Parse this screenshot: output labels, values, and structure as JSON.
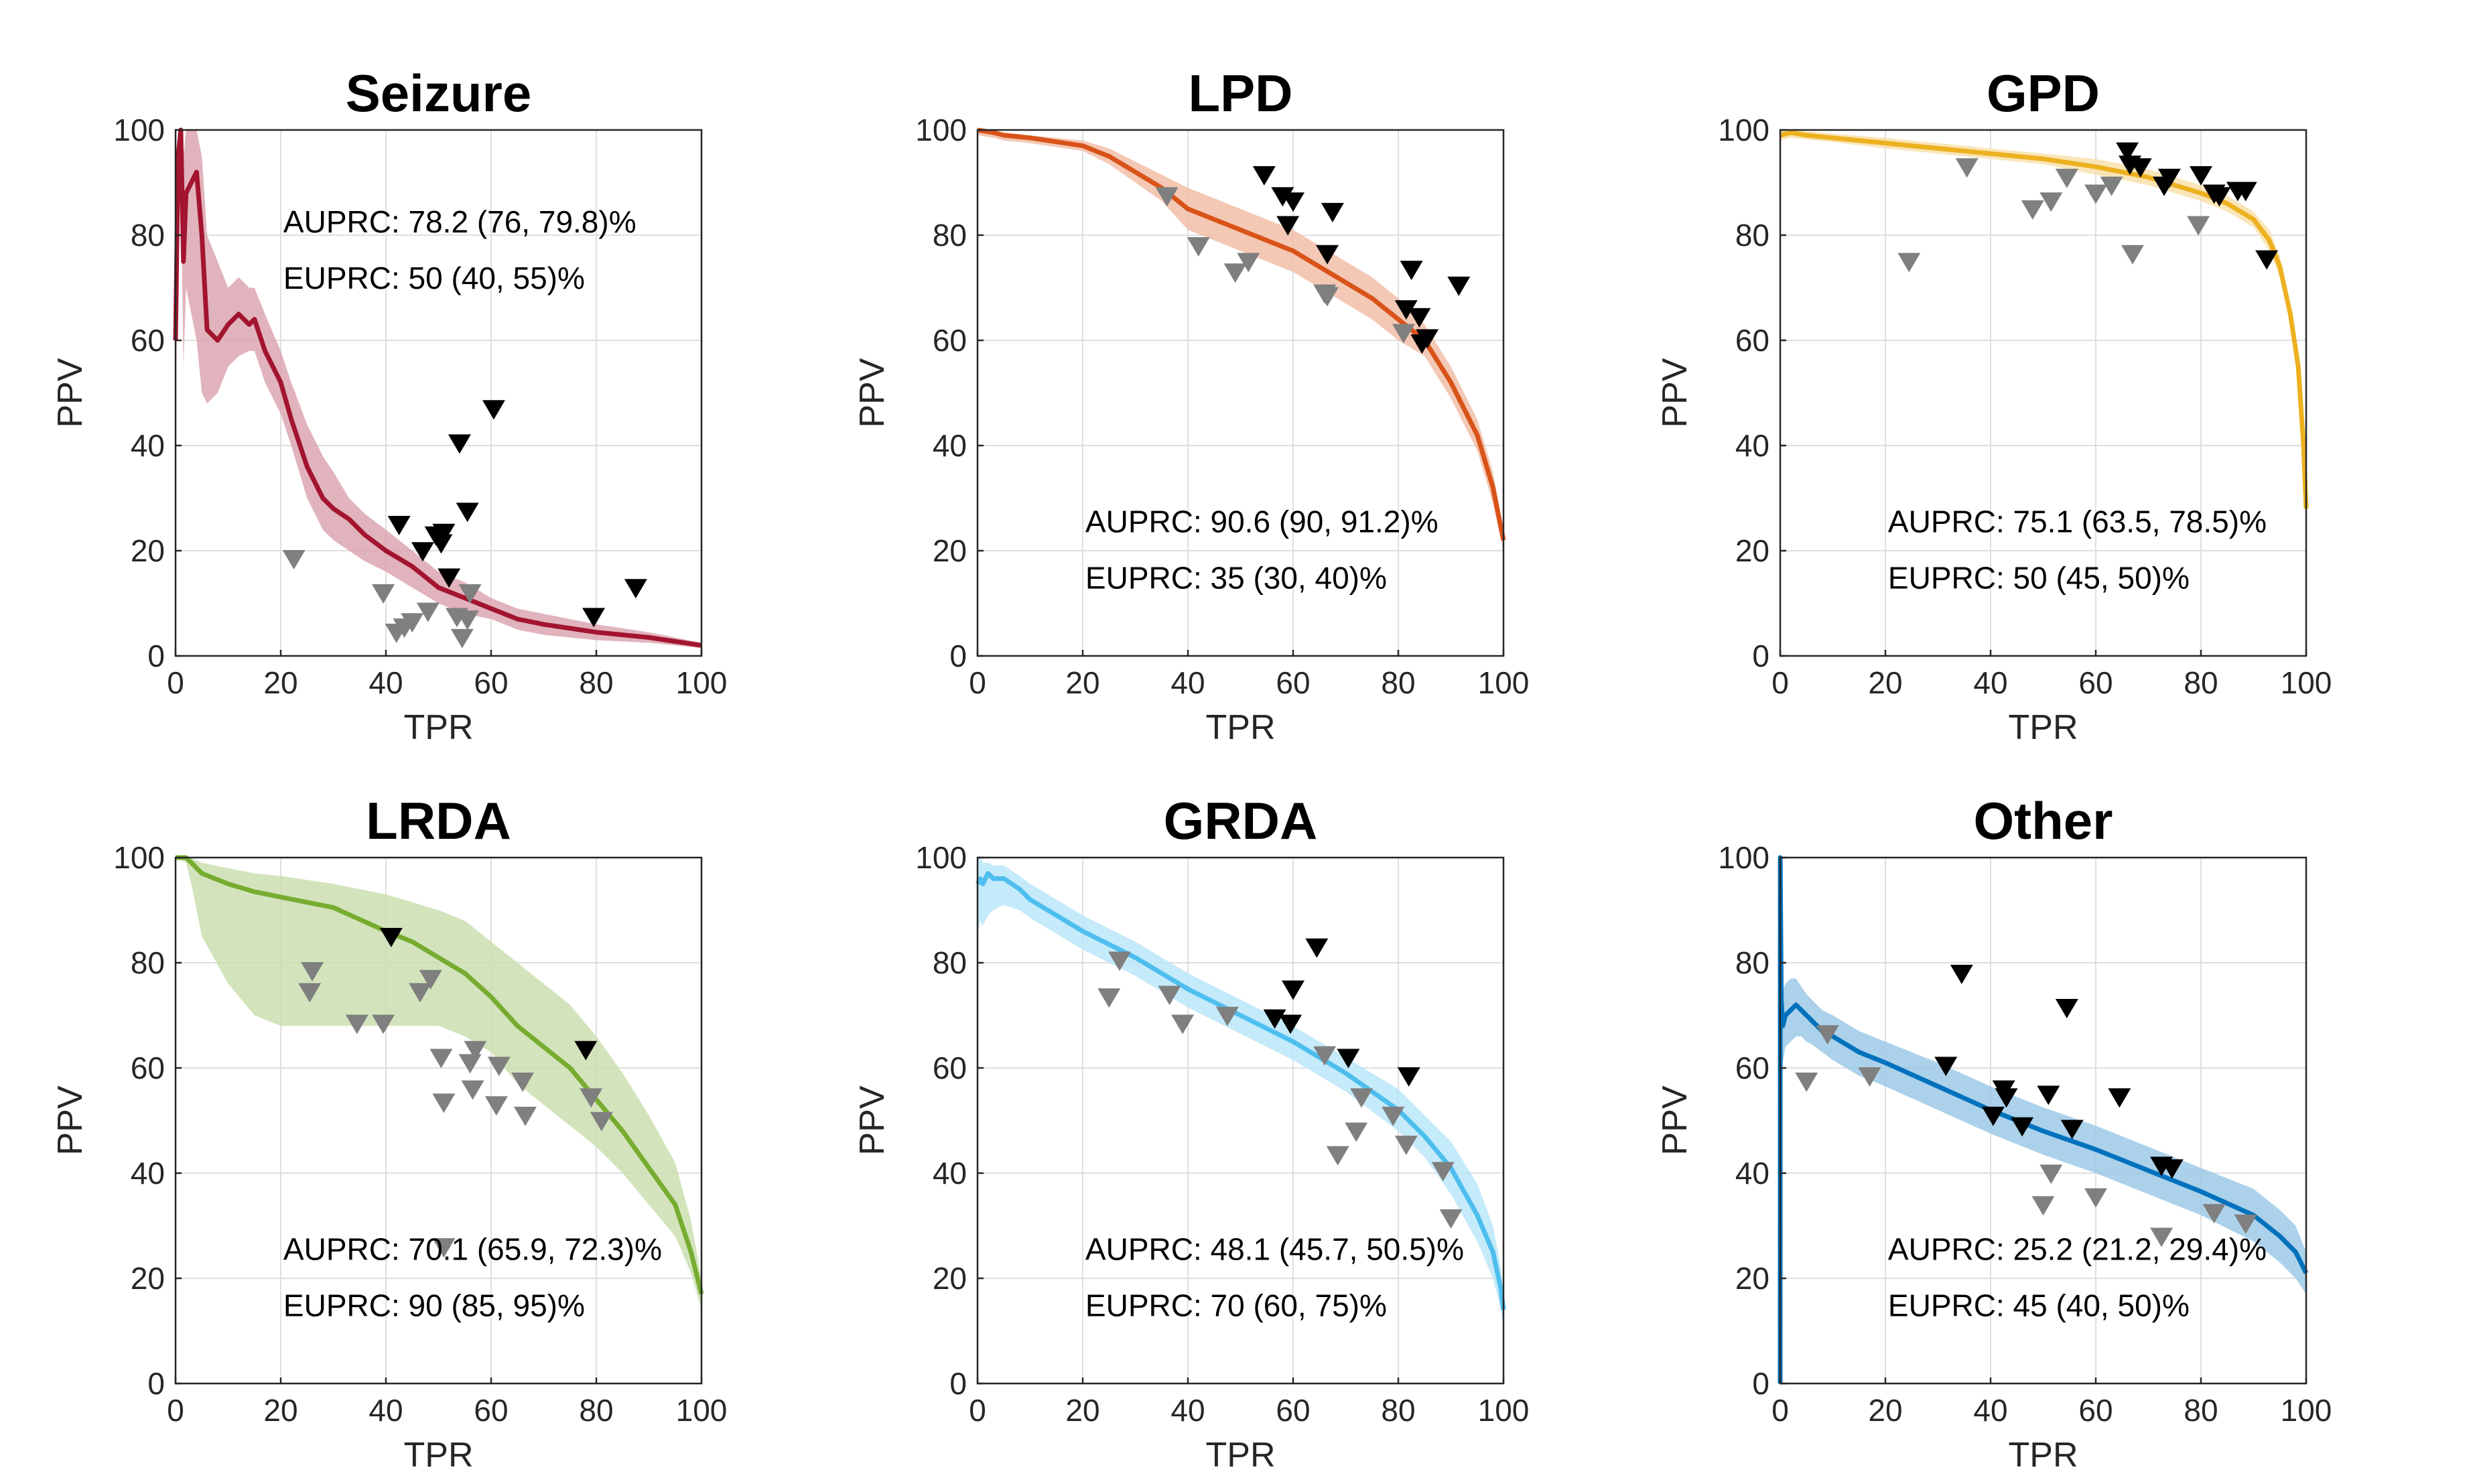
{
  "chart_data": [
    {
      "type": "line",
      "title": "Seizure",
      "xlabel": "TPR",
      "ylabel": "PPV",
      "xlim": [
        0,
        100
      ],
      "ylim": [
        0,
        100
      ],
      "xticks": [
        0,
        20,
        40,
        60,
        80,
        100
      ],
      "yticks": [
        0,
        20,
        40,
        60,
        80,
        100
      ],
      "grid": true,
      "color": "#A2142F",
      "annotations": [
        "AUPRC: 78.2 (76, 79.8)%",
        "EUPRC: 50 (40, 55)%"
      ],
      "annotation_position": "top",
      "curve": {
        "x": [
          0,
          0.5,
          1,
          1.5,
          2,
          3,
          4,
          5,
          6,
          8,
          10,
          12,
          14,
          15,
          17,
          20,
          22,
          25,
          28,
          30,
          33,
          36,
          40,
          45,
          50,
          55,
          60,
          65,
          70,
          80,
          90,
          100
        ],
        "y": [
          60,
          95,
          100,
          75,
          88,
          90,
          92,
          80,
          62,
          60,
          63,
          65,
          63,
          64,
          58,
          52,
          45,
          36,
          30,
          28,
          26,
          23,
          20,
          17,
          13,
          11,
          9,
          7,
          6,
          4.5,
          3.5,
          2
        ]
      },
      "band_upper": [
        75,
        100,
        100,
        95,
        100,
        100,
        100,
        95,
        80,
        75,
        70,
        72,
        70,
        70,
        65,
        58,
        52,
        44,
        38,
        35,
        30,
        27,
        24,
        20,
        16,
        14,
        11,
        9,
        8,
        6,
        4.5,
        2.5
      ],
      "band_lower": [
        45,
        80,
        90,
        55,
        70,
        65,
        60,
        50,
        48,
        50,
        55,
        57,
        58,
        58,
        52,
        46,
        40,
        30,
        24,
        22,
        20,
        18,
        16,
        13,
        10,
        8,
        7,
        5,
        4,
        3,
        2.5,
        1.5
      ],
      "markers_black": [
        [
          42.5,
          25
        ],
        [
          47,
          20
        ],
        [
          49.5,
          23
        ],
        [
          50.5,
          21.5
        ],
        [
          51,
          23.5
        ],
        [
          52,
          15
        ],
        [
          54,
          40.5
        ],
        [
          55.5,
          27.5
        ],
        [
          60.5,
          47
        ],
        [
          79.5,
          7.5
        ],
        [
          87.5,
          13
        ]
      ],
      "markers_gray": [
        [
          22.5,
          18.5
        ],
        [
          39.5,
          12
        ],
        [
          42,
          4.5
        ],
        [
          43.5,
          5.5
        ],
        [
          45,
          6.5
        ],
        [
          48,
          8.5
        ],
        [
          53.5,
          7.5
        ],
        [
          54.5,
          3.5
        ],
        [
          55.5,
          7
        ],
        [
          56,
          12
        ]
      ]
    },
    {
      "type": "line",
      "title": "LPD",
      "xlabel": "TPR",
      "ylabel": "PPV",
      "xlim": [
        0,
        100
      ],
      "ylim": [
        0,
        100
      ],
      "xticks": [
        0,
        20,
        40,
        60,
        80,
        100
      ],
      "yticks": [
        0,
        20,
        40,
        60,
        80,
        100
      ],
      "grid": true,
      "color": "#D95319",
      "annotations": [
        "AUPRC: 90.6 (90, 91.2)%",
        "EUPRC: 35 (30, 40)%"
      ],
      "annotation_position": "bottom",
      "curve": {
        "x": [
          0,
          3,
          5,
          10,
          20,
          25,
          30,
          35,
          40,
          45,
          50,
          55,
          60,
          65,
          70,
          75,
          80,
          85,
          90,
          95,
          98,
          100
        ],
        "y": [
          100,
          99.5,
          99,
          98.5,
          97,
          95,
          92,
          89,
          85,
          83,
          81,
          79,
          77,
          74,
          71,
          68,
          64,
          60,
          52,
          42,
          32,
          22
        ]
      },
      "band_upper": [
        100,
        100,
        99.5,
        99,
        98,
        96.5,
        94,
        91.5,
        89,
        87,
        85,
        83,
        81,
        78,
        75,
        72,
        68,
        63,
        55,
        45,
        35,
        24
      ],
      "band_lower": [
        99,
        98.5,
        98,
        97.5,
        96,
        93.5,
        90,
        86.5,
        81,
        79,
        77,
        75,
        73,
        70,
        67,
        64,
        60,
        57,
        49,
        39,
        29,
        20
      ],
      "markers_black": [
        [
          54.5,
          91.5
        ],
        [
          58,
          87.5
        ],
        [
          60,
          86.5
        ],
        [
          59,
          82
        ],
        [
          67.5,
          84.5
        ],
        [
          66.5,
          76.5
        ],
        [
          81.5,
          66
        ],
        [
          82.5,
          73.5
        ],
        [
          84,
          64.5
        ],
        [
          85.5,
          60.5
        ],
        [
          84.5,
          59.5
        ],
        [
          91.5,
          70.5
        ]
      ],
      "markers_gray": [
        [
          36,
          87.5
        ],
        [
          42,
          78
        ],
        [
          49,
          73
        ],
        [
          51.5,
          75
        ],
        [
          66,
          69
        ],
        [
          66.5,
          68.5
        ],
        [
          81,
          61.5
        ]
      ]
    },
    {
      "type": "line",
      "title": "GPD",
      "xlabel": "TPR",
      "ylabel": "PPV",
      "xlim": [
        0,
        100
      ],
      "ylim": [
        0,
        100
      ],
      "xticks": [
        0,
        20,
        40,
        60,
        80,
        100
      ],
      "yticks": [
        0,
        20,
        40,
        60,
        80,
        100
      ],
      "grid": true,
      "color": "#EDB120",
      "annotations": [
        "AUPRC: 75.1 (63.5, 78.5)%",
        "EUPRC: 50 (45, 50)%"
      ],
      "annotation_position": "bottom",
      "curve": {
        "x": [
          0,
          2,
          5,
          10,
          20,
          30,
          40,
          50,
          60,
          70,
          80,
          85,
          90,
          93,
          95,
          97,
          98.5,
          99.5,
          100
        ],
        "y": [
          99,
          99.5,
          99,
          98.5,
          97.5,
          96.5,
          95.5,
          94.5,
          93,
          91,
          88,
          86,
          83,
          79,
          74,
          65,
          55,
          40,
          28
        ]
      },
      "band_upper": [
        100,
        100,
        99.8,
        99.3,
        98.5,
        97.5,
        96.5,
        95.5,
        94.5,
        92.5,
        89.5,
        87.5,
        84.5,
        81,
        76,
        67,
        57,
        42,
        30
      ],
      "band_lower": [
        98,
        98.5,
        98.2,
        97.7,
        96.5,
        95.5,
        94.5,
        93.5,
        91.5,
        89.5,
        86.5,
        84.5,
        81.5,
        77,
        72,
        63,
        53,
        38,
        26
      ],
      "markers_black": [
        [
          66,
          96
        ],
        [
          66.5,
          93.5
        ],
        [
          68.5,
          93
        ],
        [
          73,
          89.5
        ],
        [
          74,
          91
        ],
        [
          80,
          91.5
        ],
        [
          82.5,
          88
        ],
        [
          83.5,
          87.5
        ],
        [
          87,
          88.5
        ],
        [
          88.5,
          88.5
        ],
        [
          92.5,
          75.5
        ]
      ],
      "markers_gray": [
        [
          24.5,
          75
        ],
        [
          35.5,
          93
        ],
        [
          48,
          85
        ],
        [
          51.5,
          86.5
        ],
        [
          54.5,
          91
        ],
        [
          60,
          88
        ],
        [
          63,
          89.5
        ],
        [
          67,
          76.5
        ],
        [
          79.5,
          82
        ]
      ]
    },
    {
      "type": "line",
      "title": "LRDA",
      "xlabel": "TPR",
      "ylabel": "PPV",
      "xlim": [
        0,
        100
      ],
      "ylim": [
        0,
        100
      ],
      "xticks": [
        0,
        20,
        40,
        60,
        80,
        100
      ],
      "yticks": [
        0,
        20,
        40,
        60,
        80,
        100
      ],
      "grid": true,
      "color": "#77AC30",
      "annotations": [
        "AUPRC: 70.1 (65.9, 72.3)%",
        "EUPRC: 90 (85, 95)%"
      ],
      "annotation_position": "bottom",
      "curve": {
        "x": [
          0,
          2,
          3,
          5,
          10,
          15,
          20,
          30,
          40,
          45,
          50,
          55,
          60,
          65,
          70,
          75,
          80,
          85,
          90,
          95,
          98,
          100
        ],
        "y": [
          100,
          100,
          99,
          97,
          95,
          93.5,
          92.5,
          90.5,
          86,
          84,
          81,
          78,
          73.5,
          68,
          64,
          60,
          54,
          48,
          41,
          34,
          25,
          17
        ]
      },
      "band_upper": [
        100,
        100,
        100,
        99,
        98,
        97,
        96.5,
        95,
        93,
        91.5,
        90,
        88,
        84,
        80,
        76,
        72,
        66,
        59,
        51,
        42,
        31,
        20
      ],
      "band_lower": [
        100,
        99,
        95,
        85,
        76,
        70,
        68,
        68,
        68,
        68,
        68,
        66,
        63,
        57,
        53,
        49,
        45,
        40,
        34,
        28,
        21,
        14
      ],
      "markers_black": [
        [
          41,
          85
        ],
        [
          78,
          63.5
        ]
      ],
      "markers_gray": [
        [
          26,
          78.5
        ],
        [
          25.5,
          74.5
        ],
        [
          34.5,
          68.5
        ],
        [
          39.5,
          68.5
        ],
        [
          46.5,
          74.5
        ],
        [
          48.5,
          77
        ],
        [
          50.5,
          62
        ],
        [
          51,
          53.5
        ],
        [
          56,
          61
        ],
        [
          56.5,
          56
        ],
        [
          57,
          63.5
        ],
        [
          61,
          53
        ],
        [
          61.5,
          60.5
        ],
        [
          66,
          57.5
        ],
        [
          66.5,
          51
        ],
        [
          79,
          54.5
        ],
        [
          81,
          50
        ],
        [
          51,
          26
        ]
      ]
    },
    {
      "type": "line",
      "title": "GRDA",
      "xlabel": "TPR",
      "ylabel": "PPV",
      "xlim": [
        0,
        100
      ],
      "ylim": [
        0,
        100
      ],
      "xticks": [
        0,
        20,
        40,
        60,
        80,
        100
      ],
      "yticks": [
        0,
        20,
        40,
        60,
        80,
        100
      ],
      "grid": true,
      "color": "#4DBEEE",
      "annotations": [
        "AUPRC: 48.1 (45.7, 50.5)%",
        "EUPRC: 70 (60, 75)%"
      ],
      "annotation_position": "bottom",
      "curve": {
        "x": [
          0,
          0.5,
          1,
          2,
          3,
          5,
          8,
          10,
          15,
          20,
          30,
          40,
          50,
          60,
          70,
          80,
          85,
          90,
          95,
          98,
          99.5,
          100
        ],
        "y": [
          95,
          96,
          95,
          97,
          96,
          96,
          94,
          92,
          89,
          86,
          81,
          75,
          70,
          65,
          59,
          52,
          47,
          41,
          32,
          25,
          18,
          14
        ]
      },
      "band_upper": [
        100,
        100,
        99,
        99,
        98.5,
        98.5,
        96.5,
        95,
        92,
        89,
        84,
        78,
        73,
        68,
        62,
        56,
        51,
        46,
        38,
        30,
        22,
        17
      ],
      "band_lower": [
        85,
        88,
        87,
        89,
        90,
        91,
        90,
        88.5,
        85.5,
        82.5,
        77.5,
        71.5,
        66.5,
        61.5,
        55.5,
        48,
        43,
        36,
        27,
        20,
        14,
        11
      ],
      "markers_black": [
        [
          56.5,
          69.5
        ],
        [
          60,
          75
        ],
        [
          59.5,
          68.5
        ],
        [
          64.5,
          83
        ],
        [
          70.5,
          62
        ],
        [
          82,
          58.5
        ]
      ],
      "markers_gray": [
        [
          25,
          73.5
        ],
        [
          27,
          80.5
        ],
        [
          36.5,
          74
        ],
        [
          39,
          68.5
        ],
        [
          47.5,
          70
        ],
        [
          66,
          62.5
        ],
        [
          68.5,
          43.5
        ],
        [
          72,
          48
        ],
        [
          73,
          54.5
        ],
        [
          79,
          51
        ],
        [
          81.5,
          45.5
        ],
        [
          88.5,
          40.5
        ],
        [
          90,
          31.5
        ]
      ]
    },
    {
      "type": "line",
      "title": "Other",
      "xlabel": "TPR",
      "ylabel": "PPV",
      "xlim": [
        0,
        100
      ],
      "ylim": [
        0,
        100
      ],
      "xticks": [
        0,
        20,
        40,
        60,
        80,
        100
      ],
      "yticks": [
        0,
        20,
        40,
        60,
        80,
        100
      ],
      "grid": true,
      "color": "#0072BD",
      "annotations": [
        "AUPRC: 25.2 (21.2, 29.4)%",
        "EUPRC: 45 (40, 50)%"
      ],
      "annotation_position": "bottom",
      "curve": {
        "x": [
          0,
          0.01,
          0.2,
          0.5,
          1,
          2,
          3,
          4,
          5,
          6,
          8,
          10,
          15,
          20,
          30,
          40,
          50,
          60,
          70,
          80,
          90,
          95,
          98,
          100
        ],
        "y": [
          0,
          100,
          73,
          68,
          70,
          71,
          72,
          71,
          70,
          69,
          67,
          66,
          63,
          61,
          56.5,
          52,
          48,
          44.5,
          40.5,
          36.5,
          32,
          28,
          25,
          21
        ]
      },
      "band_upper": [
        0,
        100,
        78,
        75,
        76,
        77,
        77,
        75.5,
        74,
        73,
        71,
        70,
        67,
        65,
        61,
        56.5,
        52.5,
        49,
        45,
        41,
        37,
        33,
        30,
        25
      ],
      "band_lower": [
        0,
        100,
        66,
        61,
        64,
        65,
        66,
        66,
        65,
        64.5,
        63,
        61.5,
        58.5,
        56.5,
        52,
        47.5,
        43.5,
        40,
        36,
        32,
        27,
        23,
        20,
        17
      ],
      "markers_black": [
        [
          31.5,
          60.5
        ],
        [
          34.5,
          78
        ],
        [
          40.5,
          51
        ],
        [
          42.5,
          56
        ],
        [
          43,
          54.5
        ],
        [
          46,
          49
        ],
        [
          51,
          55
        ],
        [
          54.5,
          71.5
        ],
        [
          55.5,
          48.5
        ],
        [
          64.5,
          54.5
        ],
        [
          72.5,
          41.5
        ],
        [
          74.5,
          41
        ]
      ],
      "markers_gray": [
        [
          9,
          66.5
        ],
        [
          17,
          58.5
        ],
        [
          5,
          57.5
        ],
        [
          50,
          34
        ],
        [
          51.5,
          40
        ],
        [
          60,
          35.5
        ],
        [
          72.5,
          28
        ],
        [
          82.5,
          32.5
        ],
        [
          88.5,
          30.5
        ]
      ]
    }
  ]
}
